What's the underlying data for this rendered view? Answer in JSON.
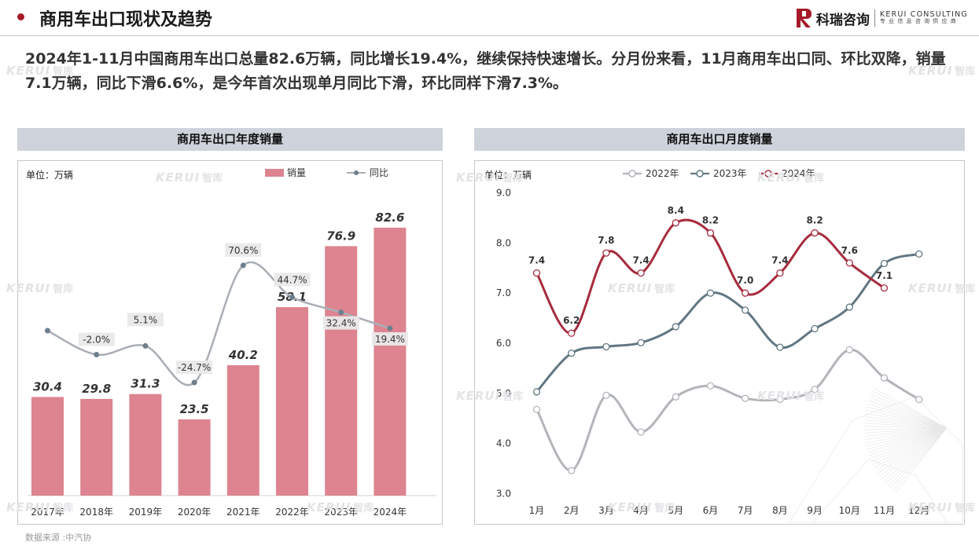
{
  "header": {
    "title": "商用车出口现状及趋势",
    "brand_cn": "科瑞咨询",
    "brand_en": "KERUI CONSULTING",
    "brand_tagline": "专 业 信 息 咨 询 供 应 商",
    "accent_color": "#a61b29"
  },
  "summary": "2024年1-11月中国商用车出口总量82.6万辆，同比增长19.4%，继续保持快速增长。分月份来看，11月商用车出口同、环比双降，销量7.1万辆，同比下滑6.6%，是今年首次出现单月同比下滑，环比同样下滑7.3%。",
  "watermark": {
    "en": "KERUI",
    "zh": "智库"
  },
  "source": "数据来源 :中汽协",
  "chart_data": [
    {
      "type": "bar",
      "title": "商用车出口年度销量",
      "unit_label": "单位：万辆",
      "categories": [
        "2017年",
        "2018年",
        "2019年",
        "2020年",
        "2021年",
        "2022年",
        "2023年",
        "2024年"
      ],
      "series": [
        {
          "name": "销量",
          "kind": "bar",
          "color": "#dd8490",
          "values": [
            30.4,
            29.8,
            31.3,
            23.5,
            40.2,
            58.1,
            76.9,
            82.6
          ]
        },
        {
          "name": "同比",
          "kind": "line",
          "color": "#a9aeb6",
          "marker_color": "#6d7f8e",
          "values": [
            null,
            -2.0,
            5.1,
            -24.7,
            70.6,
            44.7,
            32.4,
            19.4
          ],
          "labels": [
            "",
            "-2.0%",
            "5.1%",
            "-24.7%",
            "70.6%",
            "44.7%",
            "32.4%",
            "19.4%"
          ]
        }
      ],
      "legend": "top-right",
      "grid": false
    },
    {
      "type": "line",
      "title": "商用车出口月度销量",
      "unit_label": "单位：万辆",
      "categories": [
        "1月",
        "2月",
        "3月",
        "4月",
        "5月",
        "6月",
        "7月",
        "8月",
        "9月",
        "10月",
        "11月",
        "12月"
      ],
      "yticks": [
        "3.0",
        "4.0",
        "5.0",
        "6.0",
        "7.0",
        "8.0",
        "9.0"
      ],
      "ylim": [
        3.0,
        9.0
      ],
      "series": [
        {
          "name": "2022年",
          "color": "#b1b4b9",
          "values": [
            4.68,
            3.46,
            4.96,
            4.23,
            4.93,
            5.15,
            4.9,
            4.88,
            5.08,
            5.87,
            5.31,
            4.88
          ]
        },
        {
          "name": "2023年",
          "color": "#617783",
          "values": [
            5.03,
            5.8,
            5.93,
            6.01,
            6.33,
            7.0,
            6.66,
            5.92,
            6.29,
            6.72,
            7.59,
            7.78
          ]
        },
        {
          "name": "2024年",
          "color": "#a62c3d",
          "values": [
            7.4,
            6.2,
            7.8,
            7.4,
            8.4,
            8.2,
            7.0,
            7.4,
            8.2,
            7.6,
            7.1,
            null
          ],
          "labels": [
            "7.4",
            "6.2",
            "7.8",
            "7.4",
            "8.4",
            "8.2",
            "7.0",
            "7.4",
            "8.2",
            "7.6",
            "7.1",
            ""
          ]
        }
      ],
      "legend": "top-left",
      "grid": false
    }
  ]
}
